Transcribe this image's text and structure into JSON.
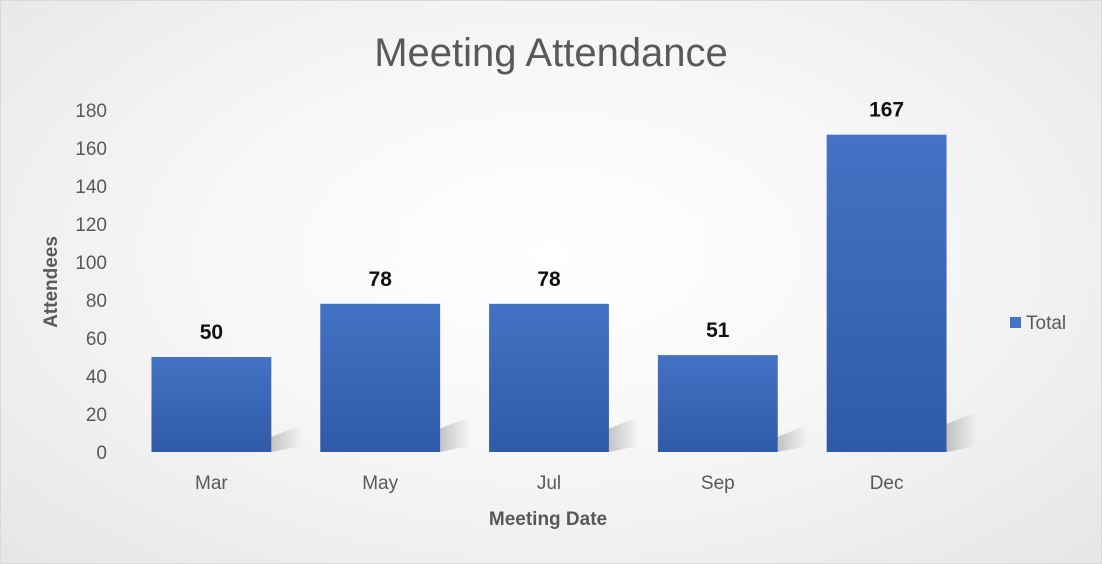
{
  "chart_data": {
    "type": "bar",
    "title": "Meeting Attendance",
    "xlabel": "Meeting Date",
    "ylabel": "Attendees",
    "categories": [
      "Mar",
      "May",
      "Jul",
      "Sep",
      "Dec"
    ],
    "series": [
      {
        "name": "Total",
        "values": [
          50,
          78,
          78,
          51,
          167
        ]
      }
    ],
    "ylim": [
      0,
      180
    ],
    "yticks": [
      0,
      20,
      40,
      60,
      80,
      100,
      120,
      140,
      160,
      180
    ],
    "grid": false,
    "legend": "right",
    "data_labels": true,
    "colors": {
      "bar_top": "#4472c4",
      "bar_bottom": "#2f5aa8",
      "text": "#595959"
    }
  }
}
